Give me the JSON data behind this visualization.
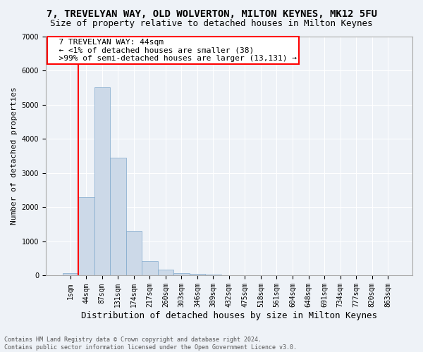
{
  "title": "7, TREVELYAN WAY, OLD WOLVERTON, MILTON KEYNES, MK12 5FU",
  "subtitle": "Size of property relative to detached houses in Milton Keynes",
  "xlabel": "Distribution of detached houses by size in Milton Keynes",
  "ylabel": "Number of detached properties",
  "annotation_line1": "7 TREVELYAN WAY: 44sqm",
  "annotation_line2": "← <1% of detached houses are smaller (38)",
  "annotation_line3": ">99% of semi-detached houses are larger (13,131) →",
  "footer_line1": "Contains HM Land Registry data © Crown copyright and database right 2024.",
  "footer_line2": "Contains public sector information licensed under the Open Government Licence v3.0.",
  "bar_color": "#ccd9e8",
  "bar_edgecolor": "#7fa8cc",
  "ylim": [
    0,
    7000
  ],
  "categories": [
    "1sqm",
    "44sqm",
    "87sqm",
    "131sqm",
    "174sqm",
    "217sqm",
    "260sqm",
    "303sqm",
    "346sqm",
    "389sqm",
    "432sqm",
    "475sqm",
    "518sqm",
    "561sqm",
    "604sqm",
    "648sqm",
    "691sqm",
    "734sqm",
    "777sqm",
    "820sqm",
    "863sqm"
  ],
  "values": [
    75,
    2300,
    5500,
    3450,
    1300,
    425,
    175,
    75,
    50,
    30,
    0,
    0,
    0,
    0,
    0,
    0,
    0,
    0,
    0,
    0,
    0
  ],
  "background_color": "#eef2f7",
  "grid_color": "#ffffff",
  "title_fontsize": 10,
  "subtitle_fontsize": 9,
  "annot_fontsize": 8,
  "ylabel_fontsize": 8,
  "xlabel_fontsize": 9,
  "footer_fontsize": 6,
  "tick_fontsize": 7
}
